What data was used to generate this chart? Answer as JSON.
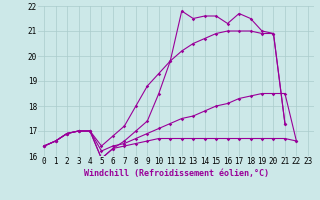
{
  "bg_color": "#cce8e8",
  "grid_color": "#aacccc",
  "line_color": "#990099",
  "xlabel": "Windchill (Refroidissement éolien,°C)",
  "xlim": [
    -0.5,
    23.5
  ],
  "ylim": [
    16,
    22
  ],
  "yticks": [
    16,
    17,
    18,
    19,
    20,
    21,
    22
  ],
  "xticks": [
    0,
    1,
    2,
    3,
    4,
    5,
    6,
    7,
    8,
    9,
    10,
    11,
    12,
    13,
    14,
    15,
    16,
    17,
    18,
    19,
    20,
    21,
    22,
    23
  ],
  "marker": "D",
  "marker_size": 1.8,
  "linewidth": 0.8,
  "xlabel_fontsize": 6,
  "tick_fontsize": 5.5,
  "line1_x": [
    0,
    1,
    2,
    3,
    4,
    5,
    6,
    7,
    8,
    9,
    10,
    11,
    12,
    13,
    14,
    15,
    16,
    17,
    18,
    19,
    20,
    21,
    22
  ],
  "line1_y": [
    16.4,
    16.6,
    16.9,
    17.0,
    17.0,
    15.9,
    16.3,
    16.4,
    16.5,
    16.6,
    16.7,
    16.7,
    16.7,
    16.7,
    16.7,
    16.7,
    16.7,
    16.7,
    16.7,
    16.7,
    16.7,
    16.7,
    16.6
  ],
  "line2_x": [
    0,
    1,
    2,
    3,
    4,
    5,
    6,
    7,
    8,
    9,
    10,
    11,
    12,
    13,
    14,
    15,
    16,
    17,
    18,
    19,
    20,
    21,
    22
  ],
  "line2_y": [
    16.4,
    16.6,
    16.9,
    17.0,
    17.0,
    16.2,
    16.4,
    16.5,
    16.7,
    16.9,
    17.1,
    17.3,
    17.5,
    17.6,
    17.8,
    18.0,
    18.1,
    18.3,
    18.4,
    18.5,
    18.5,
    18.5,
    16.6
  ],
  "line3_x": [
    0,
    1,
    2,
    3,
    4,
    5,
    6,
    7,
    8,
    9,
    10,
    11,
    12,
    13,
    14,
    15,
    16,
    17,
    18,
    19,
    20,
    21
  ],
  "line3_y": [
    16.4,
    16.6,
    16.9,
    17.0,
    17.0,
    16.4,
    16.8,
    17.2,
    18.0,
    18.8,
    19.3,
    19.8,
    20.2,
    20.5,
    20.7,
    20.9,
    21.0,
    21.0,
    21.0,
    20.9,
    20.9,
    17.3
  ],
  "line4_x": [
    0,
    1,
    2,
    3,
    4,
    5,
    6,
    7,
    8,
    9,
    10,
    11,
    12,
    13,
    14,
    15,
    16,
    17,
    18,
    19,
    20,
    21
  ],
  "line4_y": [
    16.4,
    16.6,
    16.9,
    17.0,
    17.0,
    15.9,
    16.3,
    16.6,
    17.0,
    17.4,
    18.5,
    19.8,
    21.8,
    21.5,
    21.6,
    21.6,
    21.3,
    21.7,
    21.5,
    21.0,
    20.9,
    17.3
  ]
}
